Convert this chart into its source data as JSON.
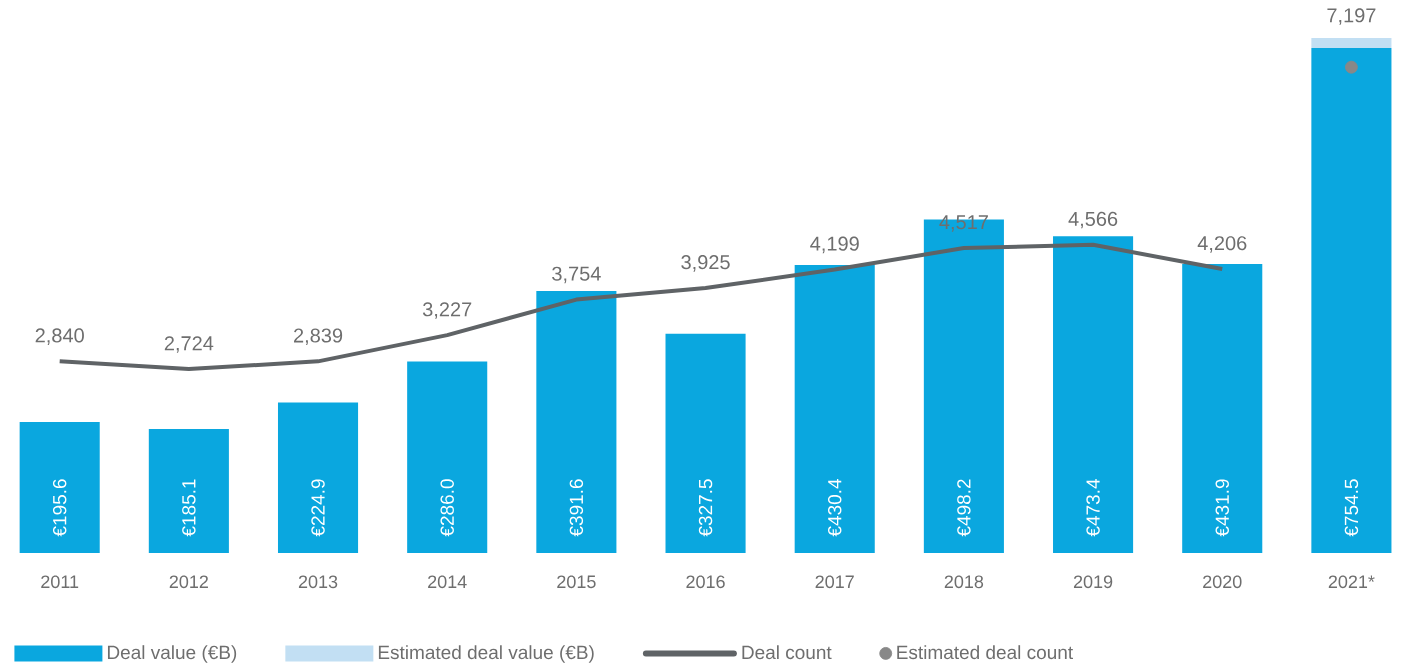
{
  "chart_data": {
    "type": "bar",
    "stacked": true,
    "categories": [
      "2011",
      "2012",
      "2013",
      "2014",
      "2015",
      "2016",
      "2017",
      "2018",
      "2019",
      "2020",
      "2021*"
    ],
    "series": [
      {
        "name": "Deal value (€B)",
        "color": "#0aa7df",
        "values": [
          195.6,
          185.1,
          224.9,
          286.0,
          391.6,
          327.5,
          430.4,
          498.2,
          473.4,
          431.9,
          754.5
        ],
        "value_labels": [
          "€195.6",
          "€185.1",
          "€224.9",
          "€286.0",
          "€391.6",
          "€327.5",
          "€430.4",
          "€498.2",
          "€473.4",
          "€431.9",
          "€754.5"
        ]
      },
      {
        "name": "Estimated deal value (€B)",
        "color": "#c2dff3",
        "values": [
          null,
          null,
          null,
          null,
          null,
          null,
          null,
          null,
          null,
          null,
          15
        ]
      },
      {
        "name": "Deal count",
        "type": "line",
        "axis": "y2",
        "color": "#5f6366",
        "values": [
          2840,
          2724,
          2839,
          3227,
          3754,
          3925,
          4199,
          4517,
          4566,
          4206,
          null
        ],
        "value_labels": [
          "2,840",
          "2,724",
          "2,839",
          "3,227",
          "3,754",
          "3,925",
          "4,199",
          "4,517",
          "4,566",
          "4,206",
          null
        ]
      },
      {
        "name": "Estimated deal count",
        "type": "scatter",
        "axis": "y2",
        "color": "#888888",
        "values": [
          null,
          null,
          null,
          null,
          null,
          null,
          null,
          null,
          null,
          null,
          7197
        ],
        "value_labels": [
          null,
          null,
          null,
          null,
          null,
          null,
          null,
          null,
          null,
          null,
          "7,197"
        ]
      }
    ],
    "tick_labels": "x",
    "legend": "bottom"
  }
}
